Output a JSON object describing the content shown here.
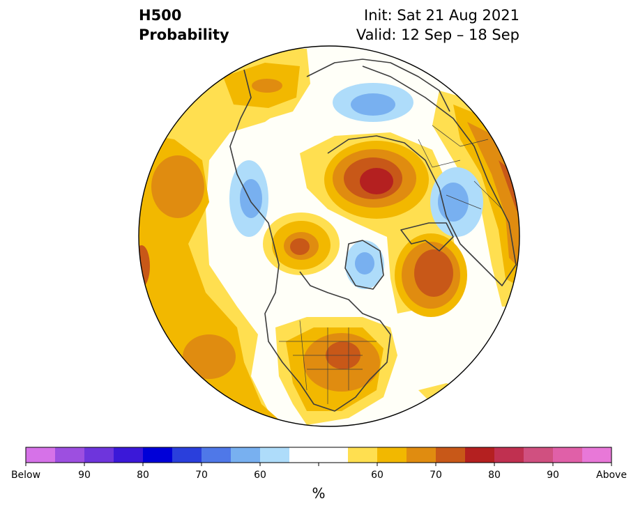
{
  "title": {
    "line1": "H500",
    "line2": "Probability"
  },
  "init_label": "Init: Sat 21 Aug 2021",
  "valid_label": "Valid: 12 Sep – 18 Sep",
  "colorbar": {
    "unit": "%",
    "colors": [
      "#d672e8",
      "#9d4fe0",
      "#6e35dc",
      "#3b18d8",
      "#0000d8",
      "#2a3fdc",
      "#4f78e8",
      "#78b0f0",
      "#aedcfa",
      "#ffffff",
      "#ffffff",
      "#ffdf50",
      "#f2b800",
      "#e08c10",
      "#c85818",
      "#b42020",
      "#c03050",
      "#d05080",
      "#e060a8",
      "#e878d8"
    ],
    "tick_labels": [
      "Below",
      "90",
      "80",
      "70",
      "60",
      "",
      "60",
      "70",
      "80",
      "90",
      "Above"
    ]
  },
  "map_palette": {
    "background": "#fffff8",
    "yellow": "#ffdf50",
    "gold": "#f2b800",
    "orange": "#e08c10",
    "dark_orange": "#c85818",
    "red": "#b42020",
    "light_blue": "#aedcfa",
    "blue": "#78b0f0",
    "coast": "#3c3c3c"
  }
}
